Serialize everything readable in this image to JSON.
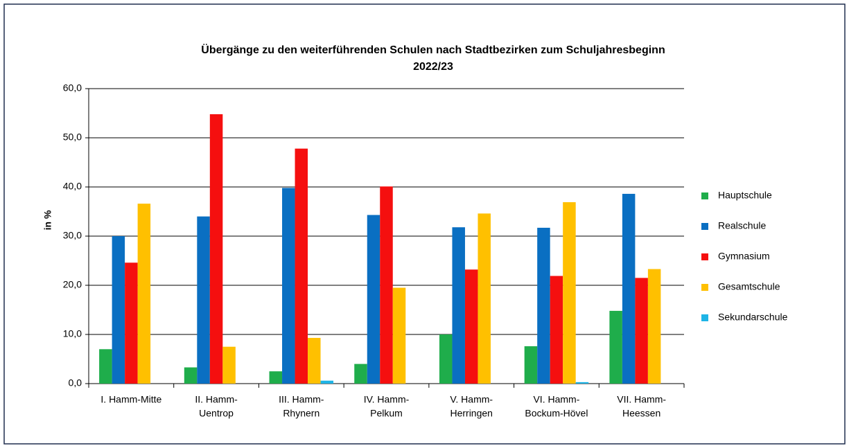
{
  "chart_data": {
    "type": "bar",
    "title": [
      "Übergänge zu den weiterführenden Schulen nach Stadtbezirken zum Schuljahresbeginn",
      "2022/23"
    ],
    "y_label": "in %",
    "categories": [
      [
        "I. Hamm-Mitte"
      ],
      [
        "II. Hamm-",
        "Uentrop"
      ],
      [
        "III. Hamm-",
        "Rhynern"
      ],
      [
        "IV. Hamm-",
        "Pelkum"
      ],
      [
        "V. Hamm-",
        "Herringen"
      ],
      [
        "VI. Hamm-",
        "Bockum-Hövel"
      ],
      [
        "VII. Hamm-",
        "Heessen"
      ]
    ],
    "series": [
      {
        "name": "Hauptschule",
        "color": "#1fad4b",
        "values": [
          7.0,
          3.3,
          2.5,
          4.0,
          10.0,
          7.6,
          14.8
        ]
      },
      {
        "name": "Realschule",
        "color": "#0a6fc2",
        "values": [
          30.0,
          34.0,
          39.8,
          34.3,
          31.8,
          31.7,
          38.6
        ]
      },
      {
        "name": "Gymnasium",
        "color": "#f50f0f",
        "values": [
          24.6,
          54.8,
          47.8,
          40.1,
          23.2,
          21.9,
          21.5
        ]
      },
      {
        "name": "Gesamtschule",
        "color": "#ffc000",
        "values": [
          36.6,
          7.5,
          9.3,
          19.5,
          34.6,
          36.9,
          23.3
        ]
      },
      {
        "name": "Sekundarschule",
        "color": "#1eb4e6",
        "values": [
          null,
          null,
          0.6,
          null,
          null,
          0.3,
          null
        ]
      }
    ],
    "ylim": [
      0,
      60
    ],
    "yticks": [
      {
        "value": 0,
        "label": "0,0"
      },
      {
        "value": 10,
        "label": "10,0"
      },
      {
        "value": 20,
        "label": "20,0"
      },
      {
        "value": 30,
        "label": "30,0"
      },
      {
        "value": 40,
        "label": "40,0"
      },
      {
        "value": 50,
        "label": "50,0"
      },
      {
        "value": 60,
        "label": "60,0"
      }
    ],
    "grid": true,
    "legend": "right"
  }
}
